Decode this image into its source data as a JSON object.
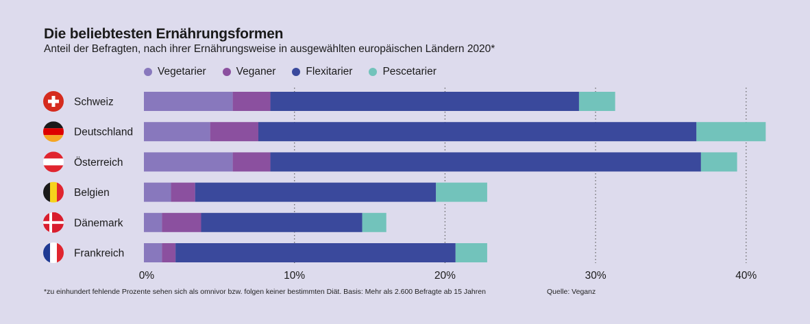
{
  "chart_data": {
    "type": "bar",
    "orientation": "horizontal",
    "stacked": true,
    "title": "Die beliebtesten Ernährungsformen",
    "subtitle": "Anteil der Befragten, nach ihrer Ernährungsweise in ausgewählten europäischen Ländern 2020*",
    "categories": [
      "Schweiz",
      "Deutschland",
      "Österreich",
      "Belgien",
      "Dänemark",
      "Frankreich"
    ],
    "series": [
      {
        "name": "Vegetarier",
        "color": "#8878bd",
        "values": [
          5.9,
          4.4,
          5.9,
          1.8,
          1.2,
          1.2
        ]
      },
      {
        "name": "Veganer",
        "color": "#8b509f",
        "values": [
          2.5,
          3.2,
          2.5,
          1.6,
          2.6,
          0.9
        ]
      },
      {
        "name": "Flexitarier",
        "color": "#3a499c",
        "values": [
          20.5,
          29.1,
          28.6,
          16.0,
          10.7,
          18.6
        ]
      },
      {
        "name": "Pescetarier",
        "color": "#72c3bb",
        "values": [
          2.4,
          4.6,
          2.4,
          3.4,
          1.6,
          2.1
        ]
      }
    ],
    "xlim": [
      0,
      40
    ],
    "xticks": [
      "0%",
      "10%",
      "20%",
      "30%",
      "40%"
    ],
    "xtick_values": [
      0,
      10,
      20,
      30,
      40
    ],
    "grid": "vertical dotted",
    "legend_position": "top"
  },
  "flags": [
    {
      "country": "Schweiz",
      "icon": "swiss-flag-icon"
    },
    {
      "country": "Deutschland",
      "icon": "german-flag-icon"
    },
    {
      "country": "Österreich",
      "icon": "austrian-flag-icon"
    },
    {
      "country": "Belgien",
      "icon": "belgian-flag-icon"
    },
    {
      "country": "Dänemark",
      "icon": "danish-flag-icon"
    },
    {
      "country": "Frankreich",
      "icon": "french-flag-icon"
    }
  ],
  "footnote": "*zu einhundert fehlende Prozente sehen sich als omnivor bzw. folgen keiner bestimmten Diät. Basis: Mehr als 2.600 Befragte ab 15 Jahren",
  "source": "Quelle: Veganz"
}
